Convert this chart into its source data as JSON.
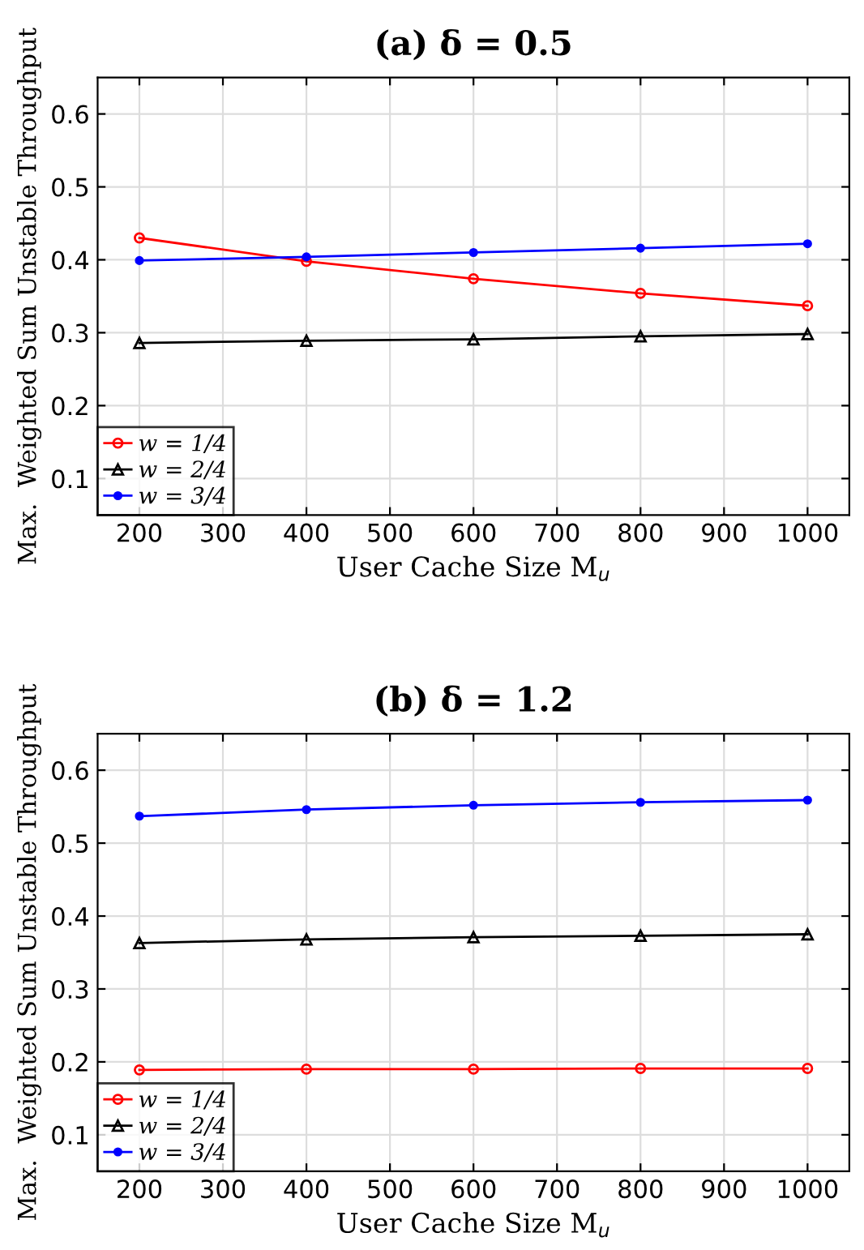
{
  "chart_data": [
    {
      "type": "line",
      "title": "(a) δ = 0.5",
      "xlabel": "User Cache Size M$_{u}$",
      "ylabel": "Max.  Weighted Sum Unstable Throughput",
      "x": [
        200,
        400,
        600,
        800,
        1000
      ],
      "series": [
        {
          "name": "w = 1/4",
          "color": "#ff0000",
          "marker": "circle",
          "values": [
            0.43,
            0.398,
            0.374,
            0.354,
            0.337
          ]
        },
        {
          "name": "w = 2/4",
          "color": "#000000",
          "marker": "triangle",
          "values": [
            0.286,
            0.289,
            0.291,
            0.295,
            0.298
          ]
        },
        {
          "name": "w = 3/4",
          "color": "#0000ff",
          "marker": "dot",
          "values": [
            0.399,
            0.404,
            0.41,
            0.416,
            0.422
          ]
        }
      ],
      "xlim": [
        150,
        1050
      ],
      "ylim": [
        0.05,
        0.65
      ],
      "xticks": [
        200,
        300,
        400,
        500,
        600,
        700,
        800,
        900,
        1000
      ],
      "yticks": [
        0.1,
        0.2,
        0.3,
        0.4,
        0.5,
        0.6
      ],
      "grid": true,
      "legend": "bottom left"
    },
    {
      "type": "line",
      "title": "(b) δ = 1.2",
      "xlabel": "User Cache Size M$_{u}$",
      "ylabel": "Max.  Weighted Sum Unstable Throughput",
      "x": [
        200,
        400,
        600,
        800,
        1000
      ],
      "series": [
        {
          "name": "w = 1/4",
          "color": "#ff0000",
          "marker": "circle",
          "values": [
            0.189,
            0.19,
            0.19,
            0.191,
            0.191
          ]
        },
        {
          "name": "w = 2/4",
          "color": "#000000",
          "marker": "triangle",
          "values": [
            0.363,
            0.368,
            0.371,
            0.373,
            0.375
          ]
        },
        {
          "name": "w = 3/4",
          "color": "#0000ff",
          "marker": "dot",
          "values": [
            0.537,
            0.546,
            0.552,
            0.556,
            0.559
          ]
        }
      ],
      "xlim": [
        150,
        1050
      ],
      "ylim": [
        0.05,
        0.65
      ],
      "xticks": [
        200,
        300,
        400,
        500,
        600,
        700,
        800,
        900,
        1000
      ],
      "yticks": [
        0.1,
        0.2,
        0.3,
        0.4,
        0.5,
        0.6
      ],
      "grid": true,
      "legend": "bottom left"
    }
  ]
}
